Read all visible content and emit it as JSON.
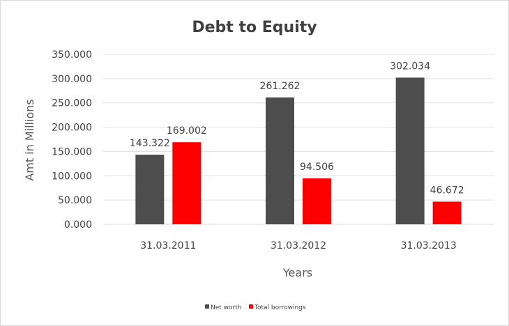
{
  "chart_data": {
    "type": "bar",
    "title": "Debt to Equity",
    "xlabel": "Years",
    "ylabel": "Amt in Millions",
    "categories": [
      "31.03.2011",
      "31.03.2012",
      "31.03.2013"
    ],
    "series": [
      {
        "name": "Net worth",
        "values": [
          143.322,
          261.262,
          302.034
        ],
        "color": "#4d4d4d"
      },
      {
        "name": "Total borrowings",
        "values": [
          169.002,
          94.506,
          46.672
        ],
        "color": "#ff0000"
      }
    ],
    "data_labels": [
      [
        "143.322",
        "261.262",
        "302.034"
      ],
      [
        "169.002",
        "94.506",
        "46.672"
      ]
    ],
    "yticks": [
      0,
      50,
      100,
      150,
      200,
      250,
      300,
      350
    ],
    "ytick_labels": [
      "0.000",
      "50.000",
      "100.000",
      "150.000",
      "200.000",
      "250.000",
      "300.000",
      "350.000"
    ],
    "ylim": [
      0,
      350
    ],
    "grid": true,
    "legend_position": "bottom"
  }
}
